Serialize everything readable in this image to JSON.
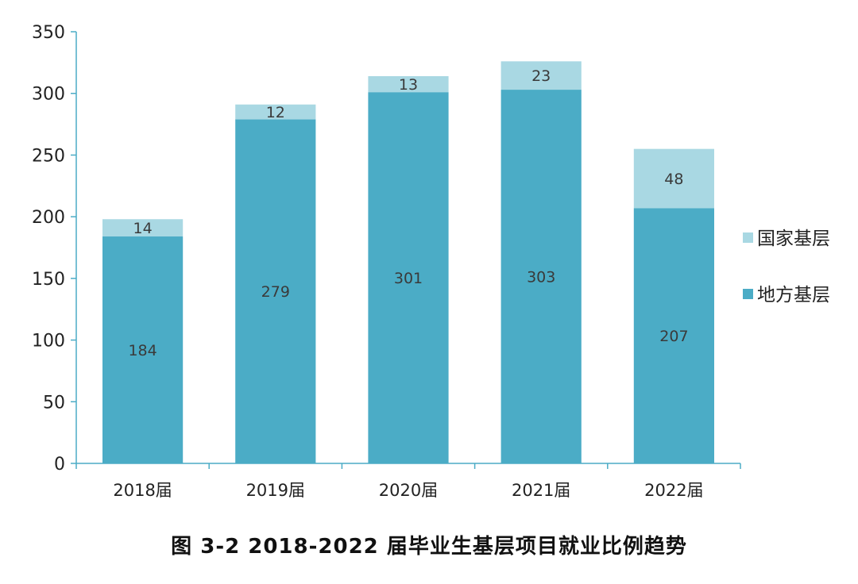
{
  "caption": "图 3-2   2018-2022 届毕业生基层项目就业比例趋势",
  "chart_data": {
    "type": "bar",
    "stacked": true,
    "categories": [
      "2018届",
      "2019届",
      "2020届",
      "2021届",
      "2022届"
    ],
    "series": [
      {
        "name": "地方基层",
        "values": [
          184,
          279,
          301,
          303,
          207
        ],
        "color": "#4bacc6"
      },
      {
        "name": "国家基层",
        "values": [
          14,
          12,
          13,
          23,
          48
        ],
        "color": "#a9d8e3"
      }
    ],
    "ylim": [
      0,
      350
    ],
    "yticks": [
      0,
      50,
      100,
      150,
      200,
      250,
      300,
      350
    ],
    "grid": false,
    "legend_position": "right",
    "axis_color": "#4bacc6"
  }
}
